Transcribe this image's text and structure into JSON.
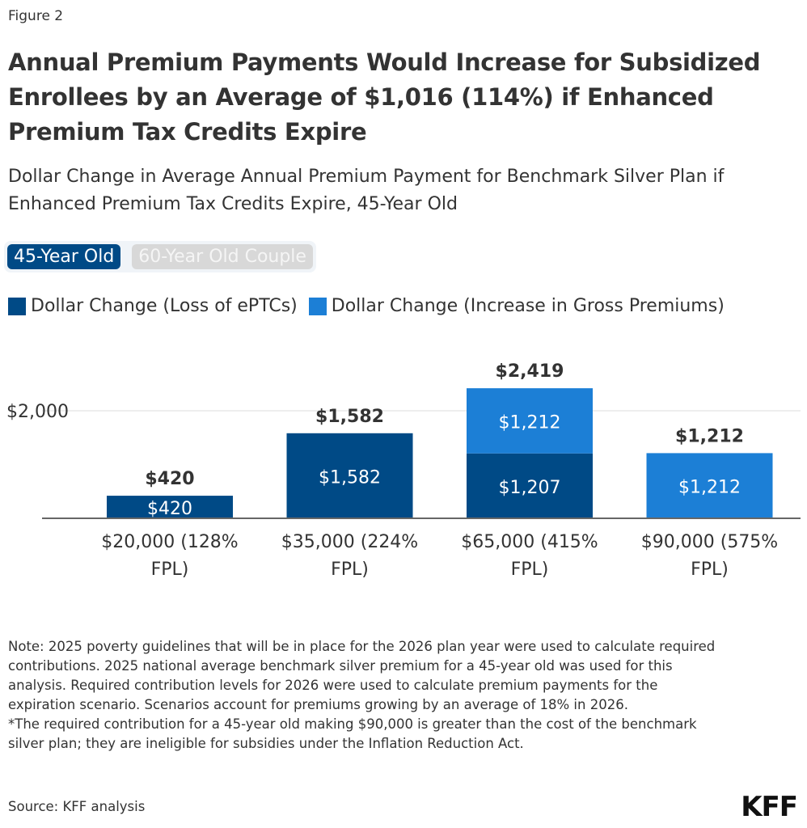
{
  "figure_label": "Figure 2",
  "title": "Annual Premium Payments Would Increase for Subsidized Enrollees by an Average of $1,016 (114%) if Enhanced Premium Tax Credits Expire",
  "subtitle": "Dollar Change in Average Annual Premium Payment for Benchmark Silver Plan if Enhanced Premium Tax Credits Expire, 45-Year Old",
  "toggle": {
    "options": [
      "45-Year Old",
      "60-Year Old Couple"
    ],
    "selected": "45-Year Old"
  },
  "chart_data": {
    "type": "bar",
    "stacked": true,
    "categories": [
      "$20,000 (128% FPL)",
      "$35,000 (224% FPL)",
      "$65,000 (415% FPL)",
      "$90,000 (575% FPL)"
    ],
    "series": [
      {
        "name": "Dollar Change (Loss of ePTCs)",
        "color": "#004a86",
        "values": [
          420,
          1582,
          1207,
          0
        ]
      },
      {
        "name": "Dollar Change (Increase in Gross Premiums)",
        "color": "#1c7fd6",
        "values": [
          0,
          0,
          1212,
          1212
        ]
      }
    ],
    "totals": [
      420,
      1582,
      2419,
      1212
    ],
    "total_labels": [
      "$420",
      "$1,582",
      "$2,419",
      "$1,212"
    ],
    "segment_labels": [
      [
        "$420",
        ""
      ],
      [
        "$1,582",
        ""
      ],
      [
        "$1,207",
        "$1,212"
      ],
      [
        "",
        "$1,212"
      ]
    ],
    "y_ticks": [
      2000
    ],
    "y_tick_labels": [
      "$2,000"
    ],
    "ylim": [
      0,
      2600
    ],
    "grid": true,
    "legend_position": "top-left"
  },
  "notes": [
    "Note: 2025 poverty guidelines that will be in place for the 2026 plan year were used to calculate required contributions. 2025 national average benchmark silver premium for a 45-year old was used for this analysis. Required contribution levels for 2026 were used to calculate premium payments for the expiration scenario. Scenarios account for premiums growing by an average of 18% in 2026.",
    "*The required contribution for a 45-year old making $90,000 is greater than the cost of the benchmark silver plan; they are ineligible for subsidies under the Inflation Reduction Act."
  ],
  "source": "Source: KFF analysis",
  "logo": "KFF"
}
